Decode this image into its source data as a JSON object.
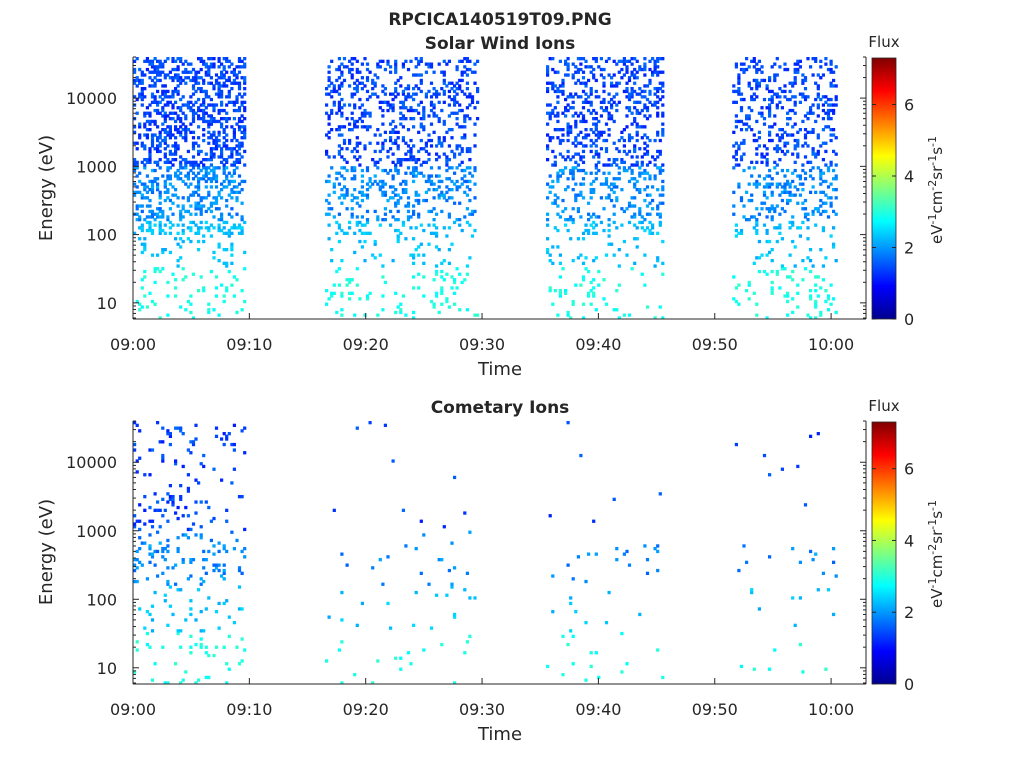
{
  "figure": {
    "title": "RPCICA140519T09.PNG"
  },
  "colorbar": {
    "label": "Flux",
    "unit_text": "eV<tspan baseline-shift=\"super\" font-size=\"11\">-1</tspan>cm<tspan baseline-shift=\"super\" font-size=\"11\">-2</tspan>sr<tspan baseline-shift=\"super\" font-size=\"11\">-1</tspan>s<tspan baseline-shift=\"super\" font-size=\"11\">-1</tspan>",
    "range": [
      0,
      7.3
    ],
    "ticks": [
      "0",
      "2",
      "4",
      "6"
    ],
    "colormap": "jet"
  },
  "chart_data": [
    {
      "type": "heatmap",
      "title": "Solar Wind Ions",
      "xlabel": "Time",
      "ylabel": "Energy (eV)",
      "x_ticks": [
        "09:00",
        "09:10",
        "09:20",
        "09:30",
        "09:40",
        "09:50",
        "10:00"
      ],
      "x_range_minutes": [
        0,
        63
      ],
      "y_ticks": [
        "10",
        "100",
        "1000",
        "10000"
      ],
      "y_range_eV": [
        5.8,
        40000
      ],
      "y_scale": "log",
      "colorbar_range": [
        0,
        7.3
      ],
      "activity_intervals_minutes": [
        [
          0,
          9.5
        ],
        [
          16.5,
          29.5
        ],
        [
          35.5,
          45.5
        ],
        [
          51.5,
          60.5
        ]
      ],
      "cells": {
        "time_min_minutes": 0,
        "time_step_minutes": 0.22,
        "energy_min_eV": 5.8,
        "energy_max_eV": 40000,
        "energy_bins": 96,
        "values_flux": "scattered 1–3 flux values; higher energies lower flux (dark blue), lower energies ~2.5–3 (cyan/green)"
      }
    },
    {
      "type": "heatmap",
      "title": "Cometary Ions",
      "xlabel": "Time",
      "ylabel": "Energy (eV)",
      "x_ticks": [
        "09:00",
        "09:10",
        "09:20",
        "09:30",
        "09:40",
        "09:50",
        "10:00"
      ],
      "x_range_minutes": [
        0,
        63
      ],
      "y_ticks": [
        "10",
        "100",
        "1000",
        "10000"
      ],
      "y_range_eV": [
        5.8,
        40000
      ],
      "y_scale": "log",
      "colorbar_range": [
        0,
        7.3
      ],
      "activity_intervals_minutes": [
        [
          0,
          9.5
        ],
        [
          16.5,
          29.5
        ],
        [
          35.5,
          45.5
        ],
        [
          51.5,
          60.5
        ]
      ],
      "cells": {
        "time_min_minutes": 0,
        "time_step_minutes": 0.22,
        "energy_min_eV": 5.8,
        "energy_max_eV": 40000,
        "energy_bins": 96,
        "values_flux": "sparse; dense cluster 09:00–09:10 up to ~20000 eV, later mostly 10–300 eV at flux ~2–3"
      }
    }
  ]
}
